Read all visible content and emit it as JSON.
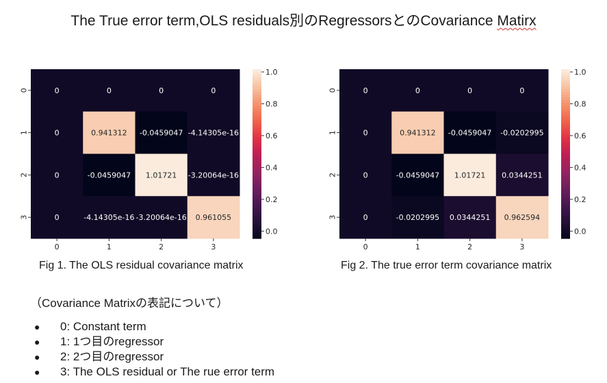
{
  "title": {
    "main": "The True error term,OLS residuals別のRegressorsとのCovariance ",
    "misspelled_word": "Matirx"
  },
  "colors": {
    "colormap": "rocket",
    "cell_text_dark_bg": "#ffffff",
    "cell_text_light_bg": "#262626",
    "misspell_underline": "#d03030"
  },
  "chart_data": [
    {
      "type": "heatmap",
      "caption": "Fig 1. The OLS residual covariance matrix",
      "x_tick_labels": [
        "0",
        "1",
        "2",
        "3"
      ],
      "y_tick_labels": [
        "0",
        "1",
        "2",
        "3"
      ],
      "values": [
        [
          0,
          0,
          0,
          0
        ],
        [
          0,
          0.941312,
          -0.0459047,
          -4.14305e-16
        ],
        [
          0,
          -0.0459047,
          1.01721,
          -3.20064e-16
        ],
        [
          0,
          -4.14305e-16,
          -3.20064e-16,
          0.961055
        ]
      ],
      "labels": [
        [
          "0",
          "0",
          "0",
          "0"
        ],
        [
          "0",
          "0.941312",
          "-0.0459047",
          "-4.14305e-16"
        ],
        [
          "0",
          "-0.0459047",
          "1.01721",
          "-3.20064e-16"
        ],
        [
          "0",
          "-4.14305e-16",
          "-3.20064e-16",
          "0.961055"
        ]
      ],
      "color_range": [
        -0.0459047,
        1.01721
      ],
      "colorbar_ticks": [
        "0.0",
        "0.2",
        "0.4",
        "0.6",
        "0.8",
        "1.0"
      ],
      "colorbar_tick_values": [
        0,
        0.2,
        0.4,
        0.6,
        0.8,
        1.0
      ],
      "colorbar_placement": "right"
    },
    {
      "type": "heatmap",
      "caption": "Fig 2. The true error term covariance matrix",
      "x_tick_labels": [
        "0",
        "1",
        "2",
        "3"
      ],
      "y_tick_labels": [
        "0",
        "1",
        "2",
        "3"
      ],
      "values": [
        [
          0,
          0,
          0,
          0
        ],
        [
          0,
          0.941312,
          -0.0459047,
          -0.0202995
        ],
        [
          0,
          -0.0459047,
          1.01721,
          0.0344251
        ],
        [
          0,
          -0.0202995,
          0.0344251,
          0.962594
        ]
      ],
      "labels": [
        [
          "0",
          "0",
          "0",
          "0"
        ],
        [
          "0",
          "0.941312",
          "-0.0459047",
          "-0.0202995"
        ],
        [
          "0",
          "-0.0459047",
          "1.01721",
          "0.0344251"
        ],
        [
          "0",
          "-0.0202995",
          "0.0344251",
          "0.962594"
        ]
      ],
      "color_range": [
        -0.0459047,
        1.01721
      ],
      "colorbar_ticks": [
        "0.0",
        "0.2",
        "0.4",
        "0.6",
        "0.8",
        "1.0"
      ],
      "colorbar_tick_values": [
        0,
        0.2,
        0.4,
        0.6,
        0.8,
        1.0
      ],
      "colorbar_placement": "right"
    }
  ],
  "notes": {
    "heading": "（Covariance Matrixの表記について）",
    "bullet": "●",
    "items": [
      "0: Constant term",
      "1: 1つ目のregressor",
      "2: 2つ目のregressor",
      "3: The OLS residual or The rue error term"
    ]
  }
}
